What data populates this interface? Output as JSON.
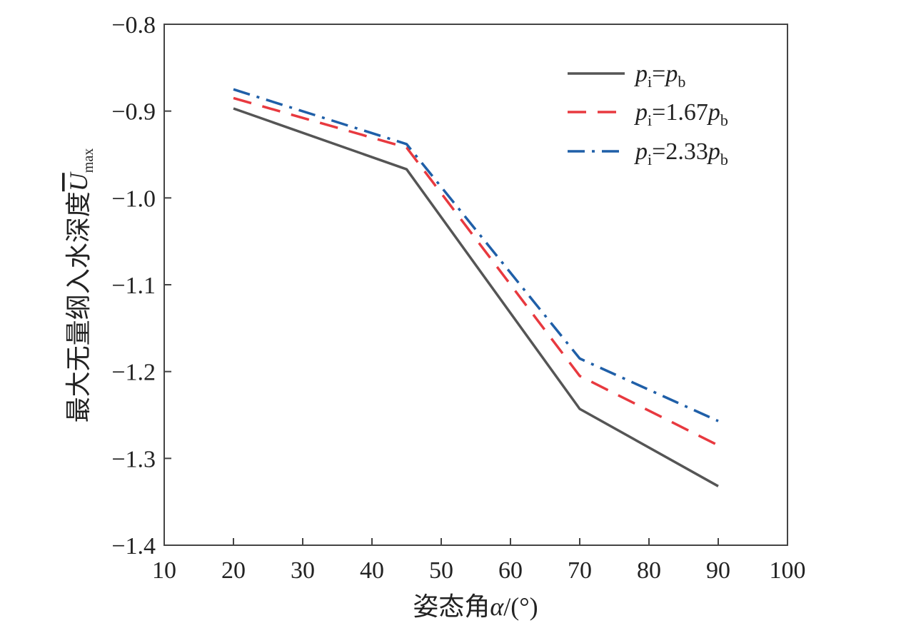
{
  "chart_data": {
    "type": "line",
    "xlabel_parts": {
      "prefix": "姿态角",
      "var": "α",
      "suffix": "/(°)"
    },
    "ylabel_parts": {
      "prefix": "最大无量纲入水深度",
      "var": "U",
      "sub": "max"
    },
    "xlim": [
      10,
      100
    ],
    "ylim": [
      -1.4,
      -0.8
    ],
    "x_ticks": [
      10,
      20,
      30,
      40,
      50,
      60,
      70,
      80,
      90,
      100
    ],
    "x_tick_labels": [
      "10",
      "20",
      "30",
      "40",
      "50",
      "60",
      "70",
      "80",
      "90",
      "100"
    ],
    "y_ticks": [
      -0.8,
      -0.9,
      -1.0,
      -1.1,
      -1.2,
      -1.3,
      -1.4
    ],
    "y_tick_labels": [
      "−0.8",
      "−0.9",
      "−1.0",
      "−1.1",
      "−1.2",
      "−1.3",
      "−1.4"
    ],
    "grid": false,
    "legend_position": "top-right",
    "x": [
      20,
      45,
      70,
      90
    ],
    "series": [
      {
        "label_parts": {
          "p1": "p",
          "s1": "i",
          "eq": "=",
          "coef": "",
          "p2": "p",
          "s2": "b"
        },
        "values": [
          -0.897,
          -0.967,
          -1.243,
          -1.332
        ],
        "color": "#555555",
        "style": "solid"
      },
      {
        "label_parts": {
          "p1": "p",
          "s1": "i",
          "eq": "=",
          "coef": "1.67",
          "p2": "p",
          "s2": "b"
        },
        "values": [
          -0.885,
          -0.942,
          -1.205,
          -1.285
        ],
        "color": "#e8393f",
        "style": "dashed"
      },
      {
        "label_parts": {
          "p1": "p",
          "s1": "i",
          "eq": "=",
          "coef": "2.33",
          "p2": "p",
          "s2": "b"
        },
        "values": [
          -0.875,
          -0.938,
          -1.185,
          -1.257
        ],
        "color": "#1f5fa8",
        "style": "dashdot"
      }
    ]
  }
}
